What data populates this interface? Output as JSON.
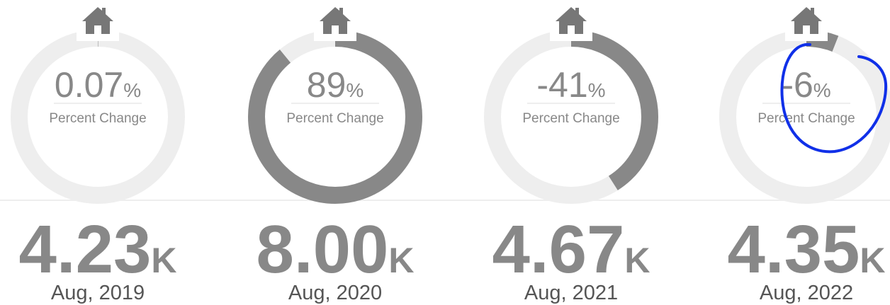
{
  "items": [
    {
      "percent": 0.07,
      "percent_unit": "%",
      "caption": "Percent Change",
      "value": "4.23",
      "value_unit": "K",
      "date": "Aug, 2019"
    },
    {
      "percent": 89,
      "percent_unit": "%",
      "caption": "Percent Change",
      "value": "8.00",
      "value_unit": "K",
      "date": "Aug, 2020"
    },
    {
      "percent": -41,
      "percent_unit": "%",
      "caption": "Percent Change",
      "value": "4.67",
      "value_unit": "K",
      "date": "Aug, 2021"
    },
    {
      "percent": -6,
      "percent_unit": "%",
      "caption": "Percent Change",
      "value": "4.35",
      "value_unit": "K",
      "date": "Aug, 2022"
    }
  ]
}
